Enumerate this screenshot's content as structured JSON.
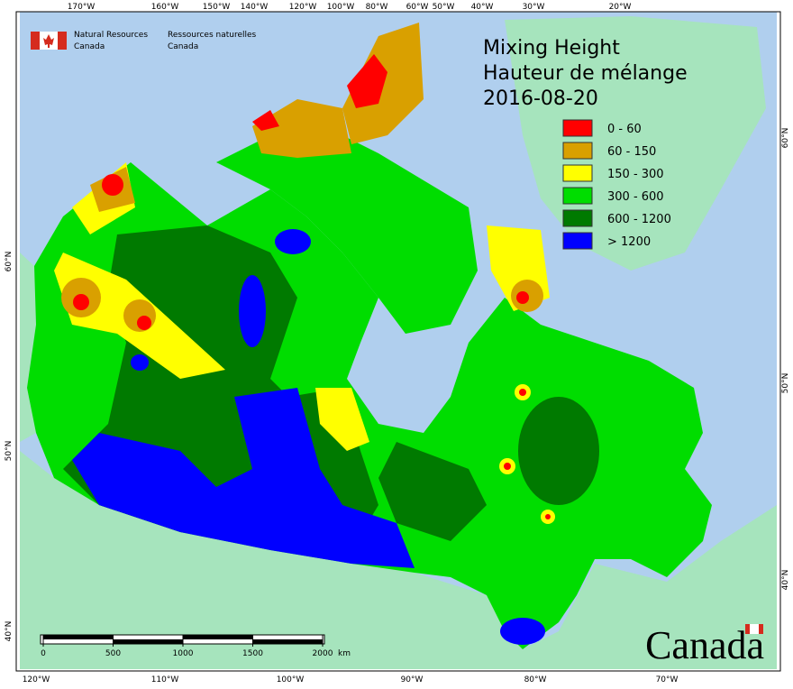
{
  "header": {
    "agency_en": [
      "Natural Resources",
      "Canada"
    ],
    "agency_fr": [
      "Ressources naturelles",
      "Canada"
    ]
  },
  "title": [
    "Mixing Height",
    "Hauteur de mélange",
    "2016-08-20"
  ],
  "legend": [
    {
      "label": "0 - 60",
      "color": "#ff0000"
    },
    {
      "label": "60 - 150",
      "color": "#d9a000"
    },
    {
      "label": "150 - 300",
      "color": "#ffff00"
    },
    {
      "label": "300 - 600",
      "color": "#00dd00"
    },
    {
      "label": "600 - 1200",
      "color": "#007a00"
    },
    {
      "label": "> 1200",
      "color": "#0000ff"
    }
  ],
  "top_labels": [
    "170°W",
    "160°W",
    "150°W",
    "140°W",
    "120°W",
    "100°W",
    "80°W",
    "60°W",
    "50°W",
    "40°W",
    "30°W",
    "20°W"
  ],
  "bottom_labels": [
    "120°W",
    "110°W",
    "100°W",
    "90°W",
    "80°W",
    "70°W"
  ],
  "left_labels": [
    "60°N",
    "50°N",
    "40°N"
  ],
  "right_labels": [
    "60°N",
    "50°N",
    "40°N"
  ],
  "scale": {
    "ticks": [
      0,
      500,
      1000,
      1500,
      2000
    ],
    "unit": "km"
  },
  "wordmark": "Canada"
}
